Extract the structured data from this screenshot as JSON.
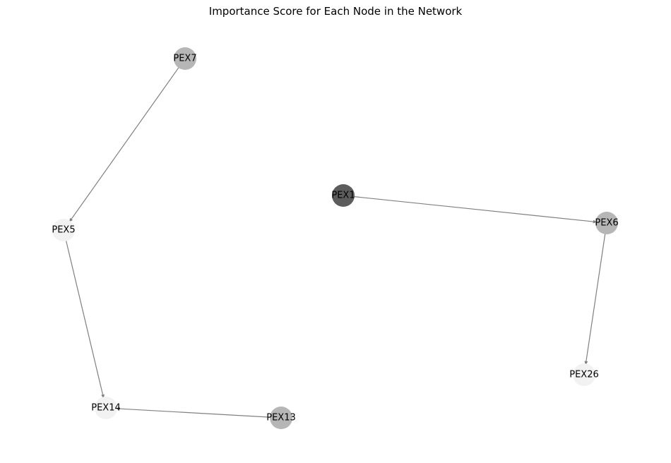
{
  "title": "Importance Score for Each Node in the Network",
  "nodes": [
    {
      "id": "PEX7",
      "label": "PEX7",
      "color": "#b6b6b6"
    },
    {
      "id": "PEX5",
      "label": "PEX5",
      "color": "#f2f2f2"
    },
    {
      "id": "PEX14",
      "label": "PEX14",
      "color": "#f2f2f2"
    },
    {
      "id": "PEX13",
      "label": "PEX13",
      "color": "#b6b6b6"
    },
    {
      "id": "PEX1",
      "label": "PEX1",
      "color": "#5c5c5c"
    },
    {
      "id": "PEX6",
      "label": "PEX6",
      "color": "#b6b6b6"
    },
    {
      "id": "PEX26",
      "label": "PEX26",
      "color": "#f2f2f2"
    }
  ],
  "edges": [
    {
      "source": "PEX7",
      "target": "PEX5"
    },
    {
      "source": "PEX5",
      "target": "PEX14"
    },
    {
      "source": "PEX13",
      "target": "PEX14"
    },
    {
      "source": "PEX1",
      "target": "PEX6"
    },
    {
      "source": "PEX6",
      "target": "PEX26"
    }
  ],
  "edge_color": "#808080"
}
